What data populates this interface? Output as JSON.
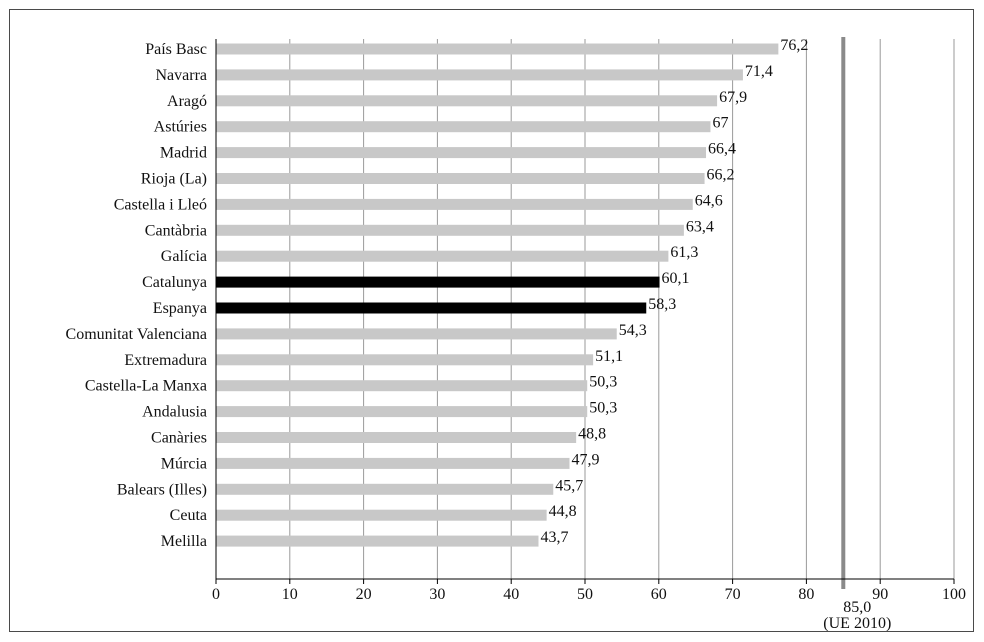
{
  "chart_data": {
    "type": "bar",
    "orientation": "horizontal",
    "categories": [
      "País Basc",
      "Navarra",
      "Aragó",
      "Astúries",
      "Madrid",
      "Rioja (La)",
      "Castella i Lleó",
      "Cantàbria",
      "Galícia",
      "Catalunya",
      "Espanya",
      "Comunitat Valenciana",
      "Extremadura",
      "Castella-La Manxa",
      "Andalusia",
      "Canàries",
      "Múrcia",
      "Balears (Illes)",
      "Ceuta",
      "Melilla"
    ],
    "values": [
      76.2,
      71.4,
      67.9,
      67,
      66.4,
      66.2,
      64.6,
      63.4,
      61.3,
      60.1,
      58.3,
      54.3,
      51.1,
      50.3,
      50.3,
      48.8,
      47.9,
      45.7,
      44.8,
      43.7
    ],
    "value_labels": [
      "76,2",
      "71,4",
      "67,9",
      "67",
      "66,4",
      "66,2",
      "64,6",
      "63,4",
      "61,3",
      "60,1",
      "58,3",
      "54,3",
      "51,1",
      "50,3",
      "50,3",
      "48,8",
      "47,9",
      "45,7",
      "44,8",
      "43,7"
    ],
    "highlighted": [
      "Catalunya",
      "Espanya"
    ],
    "xlim": [
      0,
      100
    ],
    "xticks": [
      0,
      10,
      20,
      30,
      40,
      50,
      60,
      70,
      80,
      90,
      100
    ],
    "xtick_labels": [
      "0",
      "10",
      "20",
      "30",
      "40",
      "50",
      "60",
      "70",
      "80",
      "90",
      "100"
    ],
    "grid": true,
    "reference_line": {
      "value": 85.0,
      "label_value": "85,0",
      "label_note": "(UE 2010)"
    },
    "colors": {
      "bar": "#c8c8c8",
      "highlight": "#000000",
      "grid": "#9a9a9a",
      "reference": "#8a8a8a",
      "axis": "#000000"
    },
    "title": "",
    "xlabel": "",
    "ylabel": ""
  }
}
